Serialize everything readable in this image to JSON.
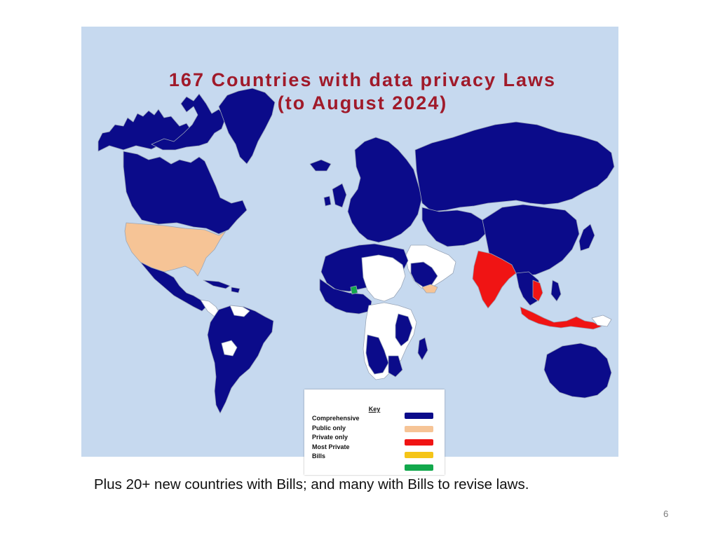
{
  "slide": {
    "title_line1": "167 Countries with data privacy Laws",
    "title_line2": "(to August 2024)",
    "caption": "Plus 20+ new countries with Bills; and many with Bills to revise laws.",
    "page_number": "6"
  },
  "key": {
    "title": "Key",
    "items": [
      {
        "label": "Comprehensive",
        "color": "#0b0b8a"
      },
      {
        "label": "Public only",
        "color": "#f6c496"
      },
      {
        "label": "Private only",
        "color": "#f01414"
      },
      {
        "label": "Most Private",
        "color": "#f5c518"
      },
      {
        "label": "Bills",
        "color": "#12a84c"
      }
    ]
  },
  "colors": {
    "ocean": "#c6d9ef",
    "comprehensive": "#0b0b8a",
    "public_only": "#f6c496",
    "private_only": "#f01414",
    "no_law": "#ffffff",
    "bills": "#12a84c",
    "title": "#a01a2a"
  }
}
